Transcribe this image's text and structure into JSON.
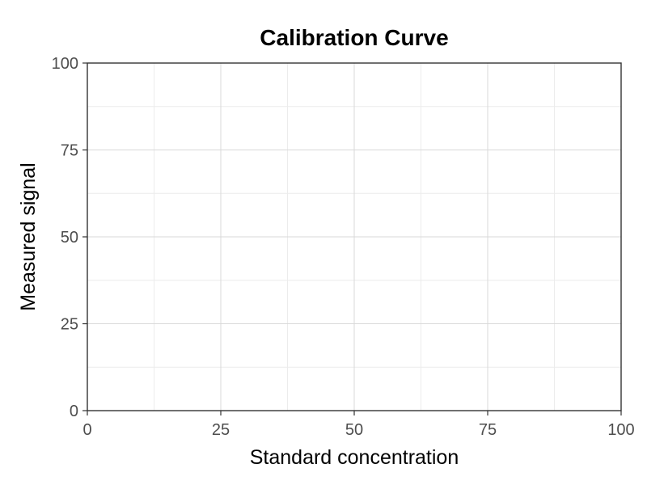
{
  "chart_data": {
    "type": "scatter",
    "title": "Calibration Curve",
    "xlabel": "Standard concentration",
    "ylabel": "Measured signal",
    "xlim": [
      0,
      100
    ],
    "ylim": [
      0,
      100
    ],
    "x_ticks": [
      0,
      25,
      50,
      75,
      100
    ],
    "y_ticks": [
      0,
      25,
      50,
      75,
      100
    ],
    "x_tick_labels": [
      "0",
      "25",
      "50",
      "75",
      "100"
    ],
    "y_tick_labels": [
      "0",
      "25",
      "50",
      "75",
      "100"
    ],
    "grid": true,
    "series": []
  }
}
